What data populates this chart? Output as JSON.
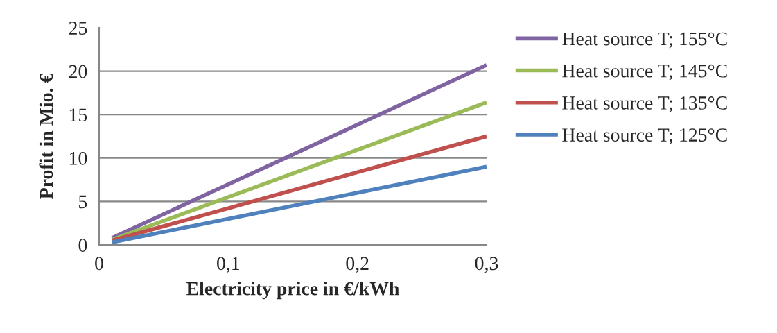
{
  "chart_data": {
    "type": "line",
    "xlabel": "Electricity price in €/kWh",
    "ylabel": "Profit in Mio. €",
    "xlim": [
      0,
      0.3
    ],
    "xticks": [
      {
        "value": 0,
        "label": "0"
      },
      {
        "value": 0.1,
        "label": "0,1"
      },
      {
        "value": 0.2,
        "label": "0,2"
      },
      {
        "value": 0.3,
        "label": "0,3"
      }
    ],
    "x": [
      0.01,
      0.3
    ],
    "ylim": [
      0,
      25
    ],
    "yticks": [
      0,
      5,
      10,
      15,
      20,
      25
    ],
    "grid": "y",
    "legend": "right",
    "marker": "none",
    "line_style": "solid",
    "series": [
      {
        "name": "Heat source T; 155°C",
        "color": "#8064a2",
        "values": [
          0.8,
          20.7
        ]
      },
      {
        "name": "Heat source T; 145°C",
        "color": "#9bbb59",
        "values": [
          0.6,
          16.4
        ]
      },
      {
        "name": "Heat source T; 135°C",
        "color": "#c0504d",
        "values": [
          0.5,
          12.5
        ]
      },
      {
        "name": "Heat source T; 125°C",
        "color": "#4f81bd",
        "values": [
          0.3,
          9.0
        ]
      }
    ]
  }
}
